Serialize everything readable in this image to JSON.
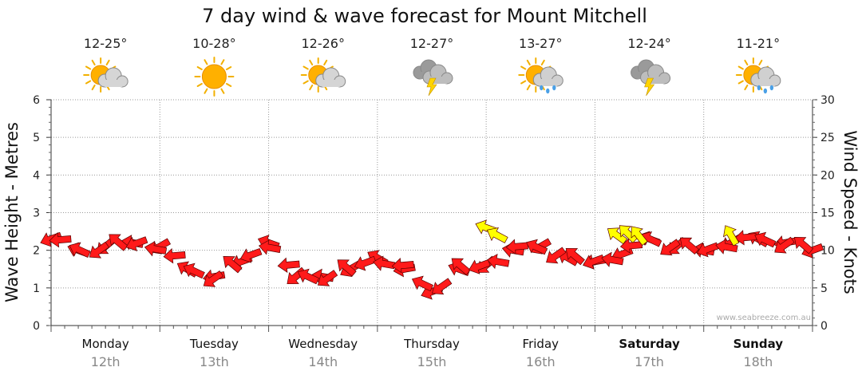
{
  "chart_data": {
    "type": "line",
    "title": "7 day wind & wave forecast for Mount Mitchell",
    "ylabel_left": "Wave Height - Metres",
    "ylabel_right": "Wind Speed - Knots",
    "ylim_left": [
      0,
      6
    ],
    "ylim_right": [
      0,
      30
    ],
    "yticks_left": [
      "0",
      "1",
      "2",
      "3",
      "4",
      "5",
      "6"
    ],
    "yticks_right": [
      "0",
      "5",
      "10",
      "15",
      "20",
      "25",
      "30"
    ],
    "grid": true,
    "days": [
      {
        "name": "Monday",
        "date": "12th",
        "temp": "12-25°",
        "icon": "partly-cloudy-icon",
        "bold": false
      },
      {
        "name": "Tuesday",
        "date": "13th",
        "temp": "10-28°",
        "icon": "sunny-icon",
        "bold": false
      },
      {
        "name": "Wednesday",
        "date": "14th",
        "temp": "12-26°",
        "icon": "partly-cloudy-icon",
        "bold": false
      },
      {
        "name": "Thursday",
        "date": "15th",
        "temp": "12-27°",
        "icon": "thunderstorm-icon",
        "bold": false
      },
      {
        "name": "Friday",
        "date": "16th",
        "temp": "13-27°",
        "icon": "sun-showers-icon",
        "bold": false
      },
      {
        "name": "Saturday",
        "date": "17th",
        "temp": "12-24°",
        "icon": "thunderstorm-icon",
        "bold": true
      },
      {
        "name": "Sunday",
        "date": "18th",
        "temp": "11-21°",
        "icon": "sun-showers-icon",
        "bold": true
      }
    ],
    "series": [
      {
        "name": "Wind Speed - Knots",
        "x": [
          0,
          0.25,
          0.5,
          0.75,
          1,
          1.25,
          1.5,
          1.75,
          2,
          2.25,
          2.5,
          2.75,
          3,
          3.25,
          3.5,
          3.75,
          4,
          4.25,
          4.5,
          4.75,
          5,
          5.25,
          5.5,
          5.75,
          6,
          6.25,
          6.5,
          6.75,
          7
        ],
        "values": [
          11.5,
          10,
          10.5,
          11,
          10.5,
          7.5,
          6.5,
          8.5,
          11,
          6.5,
          6.5,
          7.5,
          9,
          7.5,
          4.5,
          7.5,
          8,
          10,
          10.5,
          9,
          8.5,
          9.5,
          11.5,
          10.5,
          10,
          11,
          11.5,
          11,
          10
        ],
        "arrow_color": "#ff1a1a"
      },
      {
        "name": "Wave Height - Metres",
        "x": [
          4,
          4.1,
          5.2,
          5.3,
          5.4,
          6.25
        ],
        "values": [
          2.6,
          2.4,
          2.4,
          2.45,
          2.4,
          2.4
        ],
        "arrow_color": "#ffff00"
      }
    ],
    "credit": "www.seabreeze.com.au"
  }
}
